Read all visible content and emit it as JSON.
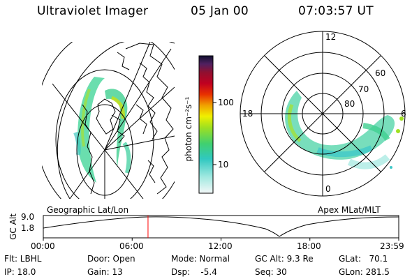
{
  "header": {
    "instrument": "Ultraviolet Imager",
    "date": "05 Jan 00",
    "time": "07:03:57 UT"
  },
  "colorbar": {
    "unit_label": "photon cm⁻²s⁻¹",
    "ticks": [
      "100",
      "10"
    ],
    "scale": "log"
  },
  "left_panel": {
    "caption": "Geographic Lat/Lon"
  },
  "right_panel": {
    "caption": "Apex MLat/MLT",
    "mlt_labels": [
      "12",
      "18",
      "6",
      "0"
    ],
    "lat_labels": [
      "60",
      "70",
      "80"
    ]
  },
  "altitude_plot": {
    "ylabel": "GC Alt",
    "yticks": [
      "9.0",
      "1.8"
    ],
    "xticks": [
      "00:00",
      "06:00",
      "12:00",
      "18:00",
      "23:59"
    ],
    "current_time_hours": 7.066,
    "marker_color": "#ff0000"
  },
  "status": {
    "filter": "Flt: LBHL",
    "ip": "IP: 18.0",
    "door": "Door: Open",
    "gain": "Gain: 13",
    "mode": "Mode: Normal",
    "dsp": "Dsp:    -5.4",
    "gc_alt": "GC Alt: 9.3 Re",
    "seq": "Seq: 30",
    "glat": "GLat:   70.1",
    "glon": "GLon: 281.5"
  }
}
